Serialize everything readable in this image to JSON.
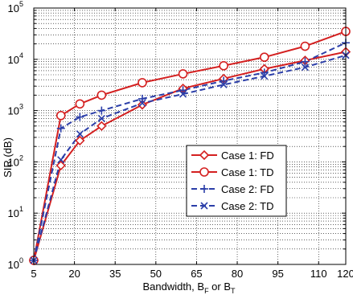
{
  "chart_data": {
    "type": "line",
    "title": "",
    "xlabel_main": "Bandwidth, B",
    "xlabel_sub1": "F",
    "xlabel_mid": " or B",
    "xlabel_sub2": "T",
    "ylabel": "SIR  (dB)",
    "xlim": [
      5,
      120
    ],
    "ylim": [
      1,
      100000
    ],
    "y_scale": "log",
    "x_ticks": [
      5,
      20,
      35,
      50,
      65,
      80,
      95,
      110,
      120
    ],
    "x_tick_labels": [
      "5",
      "20",
      "35",
      "50",
      "65",
      "80",
      "95",
      "110",
      "120"
    ],
    "y_ticks": [
      1,
      10,
      100,
      1000,
      10000,
      100000
    ],
    "y_tick_labels": [
      {
        "base": "10",
        "exp": "0"
      },
      {
        "base": "10",
        "exp": "1"
      },
      {
        "base": "10",
        "exp": "2"
      },
      {
        "base": "10",
        "exp": "3"
      },
      {
        "base": "10",
        "exp": "4"
      },
      {
        "base": "10",
        "exp": "5"
      }
    ],
    "grid": true,
    "legend_position": "center-right",
    "series": [
      {
        "name": "Case 1: FD",
        "color": "#d42020",
        "dash": "solid",
        "marker": "diamond",
        "x": [
          5,
          15,
          22,
          30,
          45,
          60,
          75,
          90,
          105,
          120
        ],
        "y": [
          1.2,
          85,
          260,
          500,
          1300,
          2700,
          4200,
          6500,
          9500,
          14000
        ]
      },
      {
        "name": "Case 1: TD",
        "color": "#d42020",
        "dash": "solid",
        "marker": "circle",
        "x": [
          5,
          15,
          22,
          30,
          45,
          60,
          75,
          90,
          105,
          120
        ],
        "y": [
          1.2,
          800,
          1350,
          2000,
          3500,
          5200,
          7500,
          11000,
          18000,
          35000
        ]
      },
      {
        "name": "Case 2: FD",
        "color": "#2b3ea8",
        "dash": "dashed",
        "marker": "plus",
        "x": [
          5,
          15,
          22,
          30,
          45,
          60,
          75,
          90,
          105,
          120
        ],
        "y": [
          1.2,
          450,
          750,
          1000,
          1700,
          2500,
          3800,
          5500,
          9000,
          21000
        ]
      },
      {
        "name": "Case 2: TD",
        "color": "#2b3ea8",
        "dash": "dashed",
        "marker": "x",
        "x": [
          5,
          15,
          22,
          30,
          45,
          60,
          75,
          90,
          105,
          120
        ],
        "y": [
          1.2,
          110,
          350,
          700,
          1400,
          2100,
          3200,
          4700,
          7000,
          12000
        ]
      }
    ]
  }
}
